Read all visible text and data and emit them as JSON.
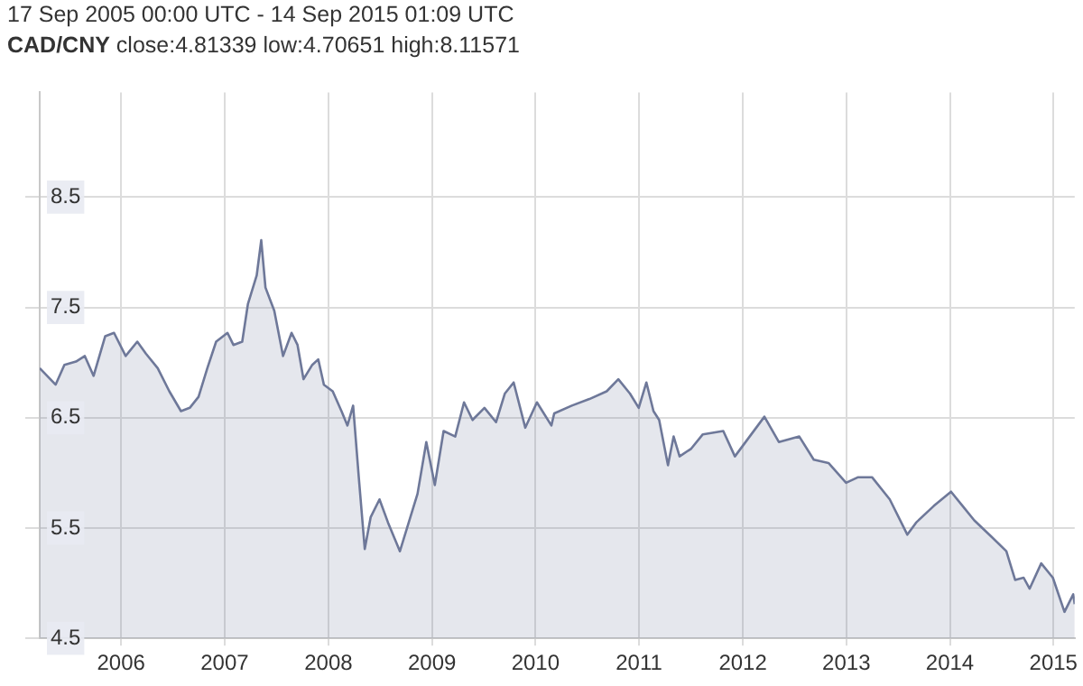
{
  "chart_data": {
    "type": "area",
    "title": "17 Sep 2005 00:00 UTC - 14 Sep 2015 01:09 UTC",
    "subtitle": "CAD/CNY close:4.81339 low:4.70651 high:8.11571",
    "x": [
      "2005-09-17",
      "2005-11-12",
      "2005-12-13",
      "2006-01-23",
      "2006-02-23",
      "2006-03-26",
      "2006-05-06",
      "2006-06-06",
      "2006-07-17",
      "2006-08-27",
      "2006-09-27",
      "2006-11-07",
      "2006-12-18",
      "2007-01-28",
      "2007-02-28",
      "2007-03-31",
      "2007-05-01",
      "2007-06-01",
      "2007-07-11",
      "2007-08-01",
      "2007-09-01",
      "2007-09-21",
      "2007-10-22",
      "2007-11-07",
      "2007-11-22",
      "2007-12-23",
      "2008-01-23",
      "2008-02-22",
      "2008-03-14",
      "2008-04-04",
      "2008-05-05",
      "2008-05-26",
      "2008-06-15",
      "2008-07-16",
      "2008-08-16",
      "2008-09-06",
      "2008-09-26",
      "2008-10-16",
      "2008-11-06",
      "2008-11-27",
      "2008-12-28",
      "2009-01-27",
      "2009-03-10",
      "2009-04-10",
      "2009-05-11",
      "2009-06-11",
      "2009-07-11",
      "2009-08-11",
      "2009-09-21",
      "2009-10-22",
      "2009-11-21",
      "2010-01-02",
      "2010-02-12",
      "2010-03-15",
      "2010-04-15",
      "2010-05-26",
      "2010-07-06",
      "2010-08-26",
      "2010-09-05",
      "2010-11-06",
      "2011-01-07",
      "2011-03-09",
      "2011-04-19",
      "2011-05-30",
      "2011-06-30",
      "2011-07-27",
      "2011-08-21",
      "2011-09-10",
      "2011-10-11",
      "2011-10-31",
      "2011-11-21",
      "2012-01-01",
      "2012-02-11",
      "2012-04-23",
      "2012-06-03",
      "2012-07-25",
      "2012-09-15",
      "2012-11-05",
      "2013-01-16",
      "2013-03-08",
      "2013-04-29",
      "2013-06-30",
      "2013-08-10",
      "2013-09-30",
      "2013-12-01",
      "2014-02-01",
      "2014-03-04",
      "2014-05-05",
      "2014-07-05",
      "2014-08-15",
      "2014-09-25",
      "2014-11-25",
      "2015-01-16",
      "2015-02-16",
      "2015-03-18",
      "2015-04-08",
      "2015-05-19",
      "2015-06-29",
      "2015-08-09",
      "2015-09-09",
      "2015-09-14"
    ],
    "series": [
      {
        "color": "#6e7899",
        "values": [
          6.95,
          6.8,
          6.98,
          7.01,
          7.06,
          6.88,
          7.24,
          7.27,
          7.06,
          7.19,
          7.08,
          6.95,
          6.74,
          6.56,
          6.59,
          6.69,
          6.95,
          7.19,
          7.27,
          7.16,
          7.19,
          7.53,
          7.79,
          8.11,
          7.68,
          7.47,
          7.06,
          7.27,
          7.16,
          6.85,
          6.98,
          7.03,
          6.8,
          6.74,
          6.56,
          6.43,
          6.61,
          5.96,
          5.31,
          5.6,
          5.76,
          5.55,
          5.29,
          5.55,
          5.81,
          6.28,
          5.89,
          6.38,
          6.33,
          6.64,
          6.48,
          6.59,
          6.46,
          6.72,
          6.82,
          6.41,
          6.64,
          6.43,
          6.54,
          6.61,
          6.67,
          6.74,
          6.85,
          6.72,
          6.59,
          6.82,
          6.56,
          6.48,
          6.07,
          6.33,
          6.15,
          6.22,
          6.35,
          6.38,
          6.15,
          6.33,
          6.51,
          6.28,
          6.33,
          6.12,
          6.09,
          5.91,
          5.96,
          5.96,
          5.76,
          5.44,
          5.55,
          5.7,
          5.83,
          5.7,
          5.57,
          5.42,
          5.29,
          5.03,
          5.05,
          4.95,
          5.18,
          5.05,
          4.74,
          4.9,
          4.81
        ]
      }
    ],
    "xlim": [
      "2005-09-17",
      "2015-09-14"
    ],
    "xticks": [
      {
        "value": "2006-07-01",
        "label": "2006"
      },
      {
        "value": "2007-07-01",
        "label": "2007"
      },
      {
        "value": "2008-07-01",
        "label": "2008"
      },
      {
        "value": "2009-07-01",
        "label": "2009"
      },
      {
        "value": "2010-07-01",
        "label": "2010"
      },
      {
        "value": "2011-07-01",
        "label": "2011"
      },
      {
        "value": "2012-07-01",
        "label": "2012"
      },
      {
        "value": "2013-07-01",
        "label": "2013"
      },
      {
        "value": "2014-07-01",
        "label": "2014"
      },
      {
        "value": "2015-07-01",
        "label": "2015"
      }
    ],
    "ylim": [
      4.5,
      9.45
    ],
    "yticks": [
      4.5,
      5.5,
      6.5,
      7.5,
      8.5
    ],
    "grid": true,
    "legend": false,
    "marker": "none",
    "line_style": "solid"
  }
}
